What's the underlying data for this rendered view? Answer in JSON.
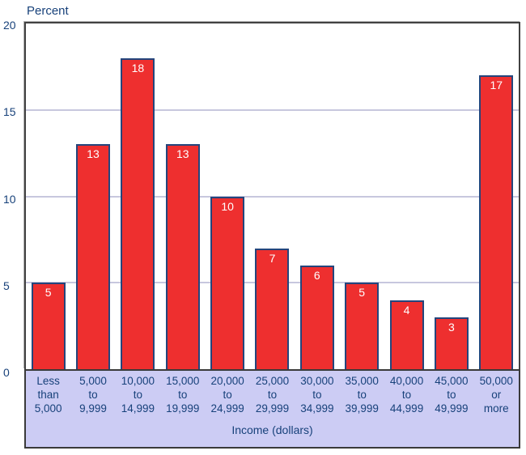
{
  "chart": {
    "ylabel": "Percent",
    "xlabel": "Income (dollars)"
  },
  "chart_data": {
    "type": "bar",
    "title": "",
    "ylabel": "Percent",
    "xlabel": "Income (dollars)",
    "categories": [
      "Less than 5,000",
      "5,000 to 9,999",
      "10,000 to 14,999",
      "15,000 to 19,999",
      "20,000 to 24,999",
      "25,000 to 29,999",
      "30,000 to 34,999",
      "35,000 to 39,999",
      "40,000 to 44,999",
      "45,000 to 49,999",
      "50,000 or more"
    ],
    "categories_lines": [
      [
        "Less",
        "than",
        "5,000"
      ],
      [
        "5,000",
        "to",
        "9,999"
      ],
      [
        "10,000",
        "to",
        "14,999"
      ],
      [
        "15,000",
        "to",
        "19,999"
      ],
      [
        "20,000",
        "to",
        "24,999"
      ],
      [
        "25,000",
        "to",
        "29,999"
      ],
      [
        "30,000",
        "to",
        "34,999"
      ],
      [
        "35,000",
        "to",
        "39,999"
      ],
      [
        "40,000",
        "to",
        "44,999"
      ],
      [
        "45,000",
        "to",
        "49,999"
      ],
      [
        "50,000",
        "or",
        "more"
      ]
    ],
    "values": [
      5,
      13,
      18,
      13,
      10,
      7,
      6,
      5,
      4,
      3,
      17
    ],
    "bar_value_labels": [
      "5",
      "13",
      "18",
      "13",
      "10",
      "7",
      "6",
      "5",
      "4",
      "3",
      "17"
    ],
    "ylim": [
      0,
      20
    ],
    "yticks": [
      0,
      5,
      10,
      15,
      20
    ],
    "gridlines": [
      5,
      10,
      15
    ],
    "grid": true,
    "legend": false
  },
  "colors": {
    "bar_fill": "#ee2f2f",
    "bar_border": "#24457c",
    "grid_line": "#c7c7de",
    "axis_text": "#17417a",
    "value_label": "#ffffff",
    "band_bg": "#ccccf4",
    "band_border": "#3a3a3a",
    "plot_border": "#414141",
    "page_bg": "#ffffff"
  }
}
